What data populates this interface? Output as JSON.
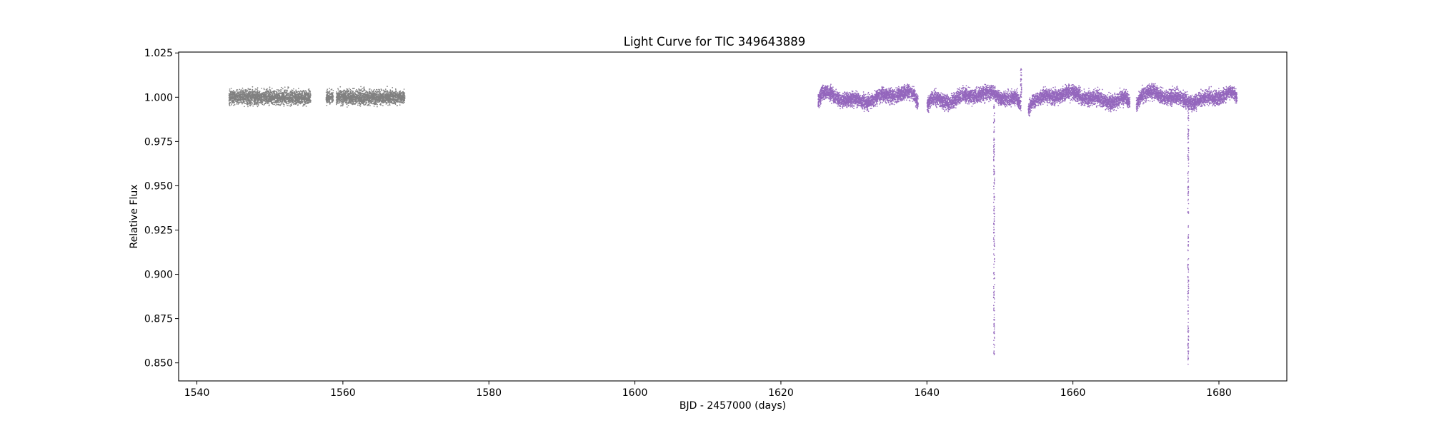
{
  "chart_data": {
    "type": "scatter",
    "title": "Light Curve for TIC 349643889",
    "xlabel": "BJD - 2457000 (days)",
    "ylabel": "Relative Flux",
    "xlim": [
      1537.5,
      1689.3
    ],
    "ylim": [
      0.8398,
      1.0255
    ],
    "xticks": [
      1540,
      1560,
      1580,
      1600,
      1620,
      1640,
      1660,
      1680
    ],
    "yticks": [
      0.85,
      0.875,
      0.9,
      0.925,
      0.95,
      0.975,
      1.0,
      1.025
    ],
    "grid": false,
    "legend": "none",
    "series": [
      {
        "color": "#808080",
        "segments": [
          [
            1544.4,
            1555.6
          ],
          [
            1557.7,
            1558.7
          ],
          [
            1559.1,
            1568.5
          ]
        ],
        "baseline": 1.0,
        "scatter": 0.002
      },
      {
        "color": "#9467bd",
        "segments": [
          [
            1625.1,
            1638.8
          ],
          [
            1640.0,
            1652.9
          ],
          [
            1653.9,
            1667.8
          ],
          [
            1668.7,
            1682.5
          ]
        ],
        "baseline": 1.0,
        "scatter": 0.002,
        "spikes": [
          {
            "x": 1652.9,
            "y_max": 1.017
          },
          {
            "x": 1637.4,
            "y_max": 1.008
          }
        ],
        "transits": [
          {
            "center": 1649.2,
            "depth_min": 0.852
          },
          {
            "center": 1675.8,
            "depth_min": 0.849
          }
        ]
      }
    ]
  }
}
